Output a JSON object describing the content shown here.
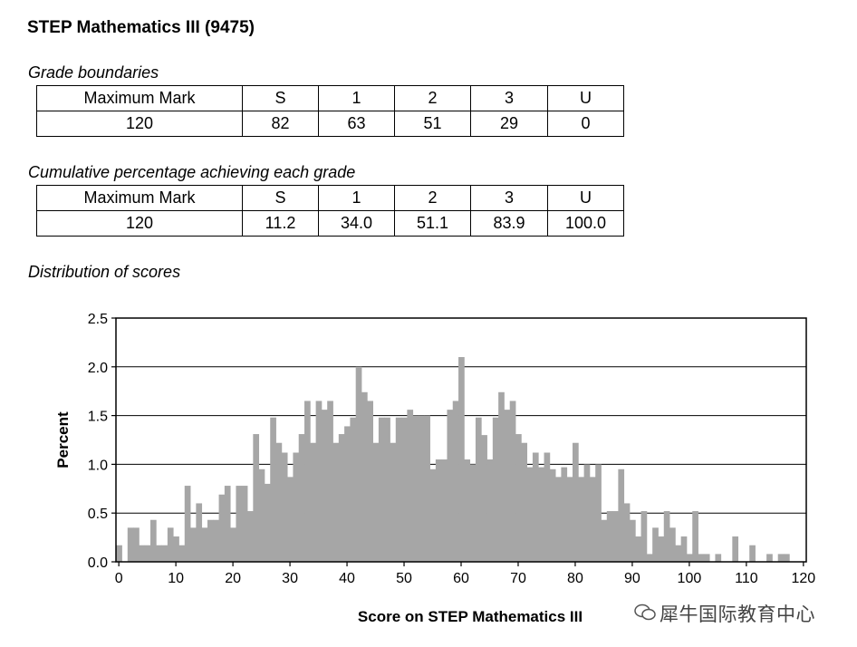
{
  "title": "STEP Mathematics III (9475)",
  "grade_boundaries": {
    "heading": "Grade boundaries",
    "header": [
      "Maximum Mark",
      "S",
      "1",
      "2",
      "3",
      "U"
    ],
    "values": [
      "120",
      "82",
      "63",
      "51",
      "29",
      "0"
    ]
  },
  "cumulative": {
    "heading": "Cumulative percentage achieving each grade",
    "header": [
      "Maximum Mark",
      "S",
      "1",
      "2",
      "3",
      "U"
    ],
    "values": [
      "120",
      "11.2",
      "34.0",
      "51.1",
      "83.9",
      "100.0"
    ]
  },
  "distribution_heading": "Distribution of scores",
  "watermark": "犀牛国际教育中心",
  "chart_data": {
    "type": "bar",
    "xlabel": "Score on STEP Mathematics III",
    "ylabel": "Percent",
    "xlim": [
      0,
      120
    ],
    "ylim": [
      0,
      2.5
    ],
    "x_ticks": [
      "0",
      "10",
      "20",
      "30",
      "40",
      "50",
      "60",
      "70",
      "80",
      "90",
      "100",
      "110",
      "120"
    ],
    "y_ticks": [
      "0.0",
      "0.5",
      "1.0",
      "1.5",
      "2.0",
      "2.5"
    ],
    "grid": "horizontal",
    "bar_color": "#a6a6a6",
    "x": [
      0,
      1,
      2,
      3,
      4,
      5,
      6,
      7,
      8,
      9,
      10,
      11,
      12,
      13,
      14,
      15,
      16,
      17,
      18,
      19,
      20,
      21,
      22,
      23,
      24,
      25,
      26,
      27,
      28,
      29,
      30,
      31,
      32,
      33,
      34,
      35,
      36,
      37,
      38,
      39,
      40,
      41,
      42,
      43,
      44,
      45,
      46,
      47,
      48,
      49,
      50,
      51,
      52,
      53,
      54,
      55,
      56,
      57,
      58,
      59,
      60,
      61,
      62,
      63,
      64,
      65,
      66,
      67,
      68,
      69,
      70,
      71,
      72,
      73,
      74,
      75,
      76,
      77,
      78,
      79,
      80,
      81,
      82,
      83,
      84,
      85,
      86,
      87,
      88,
      89,
      90,
      91,
      92,
      93,
      94,
      95,
      96,
      97,
      98,
      99,
      100,
      101,
      102,
      103,
      104,
      105,
      106,
      107,
      108,
      109,
      110,
      111,
      112,
      113,
      114,
      115,
      116,
      117,
      118,
      119,
      120
    ],
    "values": [
      0.17,
      0,
      0.35,
      0.35,
      0.17,
      0.17,
      0.43,
      0.17,
      0.17,
      0.35,
      0.26,
      0.17,
      0.78,
      0.35,
      0.6,
      0.35,
      0.43,
      0.43,
      0.69,
      0.78,
      0.35,
      0.78,
      0.78,
      0.52,
      1.31,
      0.95,
      0.8,
      1.48,
      1.22,
      1.12,
      0.87,
      1.12,
      1.31,
      1.65,
      1.22,
      1.65,
      1.56,
      1.65,
      1.22,
      1.31,
      1.39,
      1.48,
      2.0,
      1.74,
      1.65,
      1.22,
      1.48,
      1.48,
      1.22,
      1.48,
      1.48,
      1.56,
      1.5,
      1.5,
      1.5,
      0.95,
      1.05,
      1.05,
      1.56,
      1.65,
      2.1,
      1.05,
      1.0,
      1.48,
      1.3,
      1.05,
      1.48,
      1.74,
      1.56,
      1.65,
      1.31,
      1.22,
      0.97,
      1.12,
      0.97,
      1.12,
      0.95,
      0.87,
      0.97,
      0.87,
      1.22,
      0.87,
      1.0,
      0.87,
      1.0,
      0.43,
      0.52,
      0.52,
      0.95,
      0.6,
      0.43,
      0.26,
      0.52,
      0.08,
      0.35,
      0.26,
      0.52,
      0.35,
      0.17,
      0.26,
      0.08,
      0.52,
      0.08,
      0.08,
      0.0,
      0.08,
      0.0,
      0.0,
      0.26,
      0.0,
      0.0,
      0.17,
      0.0,
      0.0,
      0.08,
      0.0,
      0.08,
      0.08,
      0,
      0,
      0
    ]
  }
}
